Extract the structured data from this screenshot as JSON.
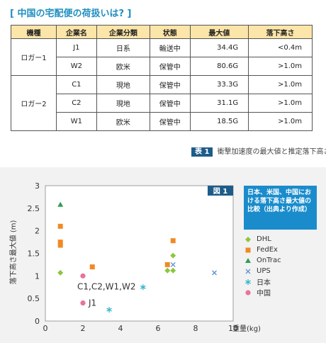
{
  "title": "[ 中国の宅配便の荷扱いは? ]",
  "table": {
    "headers": [
      "機種",
      "企業名",
      "企業分類",
      "状態",
      "最大値",
      "落下高さ"
    ],
    "groups": [
      {
        "name": "ロガー1",
        "rows": [
          [
            "J1",
            "日系",
            "輸送中",
            "34.4G",
            "<0.4m"
          ],
          [
            "W2",
            "欧米",
            "保管中",
            "80.6G",
            ">1.0m"
          ]
        ]
      },
      {
        "name": "ロガー2",
        "rows": [
          [
            "C1",
            "現地",
            "保管中",
            "33.3G",
            ">1.0m"
          ],
          [
            "C2",
            "現地",
            "保管中",
            "31.1G",
            ">1.0m"
          ],
          [
            "W1",
            "欧米",
            "保管中",
            "18.5G",
            ">1.0m"
          ]
        ]
      }
    ]
  },
  "caption": {
    "badge": "表 1",
    "text": "衝撃加速度の最大値と推定落下高さ"
  },
  "figure_badge": "図 1",
  "legend_title": "日本、米国、中国における落下高さ最大値の比較（出典より作成）",
  "chart_data": {
    "type": "scatter",
    "title": "",
    "xlabel": "重量(kg)",
    "ylabel": "落下高さ最大値 (m)",
    "xlim": [
      0,
      10
    ],
    "ylim": [
      0,
      3
    ],
    "xticks": [
      0,
      2,
      4,
      6,
      8,
      10
    ],
    "yticks": [
      0,
      0.5,
      1,
      1.5,
      2,
      2.5,
      3
    ],
    "series": [
      {
        "name": "DHL",
        "marker": "diamond",
        "color": "#8dc63f",
        "points": [
          [
            0.8,
            1.07
          ],
          [
            6.5,
            1.12
          ],
          [
            6.8,
            1.12
          ],
          [
            6.8,
            1.45
          ]
        ]
      },
      {
        "name": "FedEx",
        "marker": "square",
        "color": "#f08a24",
        "points": [
          [
            0.8,
            2.1
          ],
          [
            0.8,
            1.75
          ],
          [
            0.8,
            1.68
          ],
          [
            2.5,
            1.2
          ],
          [
            6.5,
            1.25
          ],
          [
            6.8,
            1.78
          ]
        ]
      },
      {
        "name": "OnTrac",
        "marker": "triangle",
        "color": "#2e9e4f",
        "points": [
          [
            0.8,
            2.58
          ]
        ]
      },
      {
        "name": "UPS",
        "marker": "x",
        "color": "#5b8fd1",
        "points": [
          [
            6.8,
            1.25
          ],
          [
            9.0,
            1.07
          ]
        ]
      },
      {
        "name": "日本",
        "marker": "asterisk",
        "color": "#36b5c9",
        "points": [
          [
            3.4,
            0.25
          ],
          [
            5.2,
            0.75
          ]
        ]
      },
      {
        "name": "中国",
        "marker": "circle",
        "color": "#e8749a",
        "points": [
          [
            2.0,
            1.0
          ],
          [
            2.0,
            0.4
          ]
        ]
      }
    ],
    "annotations": [
      {
        "text": "C1,C2,W1,W2",
        "x": 2.0,
        "y": 1.0
      },
      {
        "text": "J1",
        "x": 2.0,
        "y": 0.4
      }
    ]
  }
}
